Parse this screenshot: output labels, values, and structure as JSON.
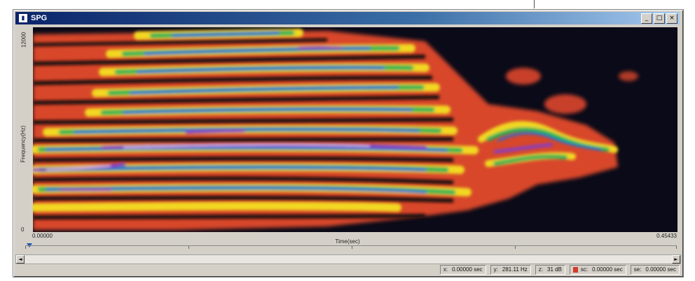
{
  "window": {
    "title": "SPG",
    "icon_name": "spectrogram-app-icon",
    "buttons": [
      "_",
      "□",
      "×"
    ]
  },
  "plot": {
    "ylabel": "Frequency(Hz)",
    "y_top_tick": "12000",
    "y_bottom_tick": "0",
    "xlabel": "Time(sec)",
    "x_left_tick": "0.00000",
    "x_right_tick": "0.45433"
  },
  "scrollbar": {
    "left_arrow": "◄",
    "right_arrow": "►"
  },
  "status": {
    "x_label": "x:",
    "x_value": "0.00000 sec",
    "y_label": "y:",
    "y_value": "281.11 Hz",
    "z_label": "z:",
    "z_value": "31 dB",
    "sc_label": "sc:",
    "sc_value": "0.00000 sec",
    "se_label": "se:",
    "se_value": "0.00000 sec"
  },
  "colors": {
    "background": "#0a0a18",
    "low": "#e0502a",
    "mid": "#f4e020",
    "high_green": "#20c050",
    "high_blue": "#2a6ad8",
    "peak": "#9040c0"
  }
}
